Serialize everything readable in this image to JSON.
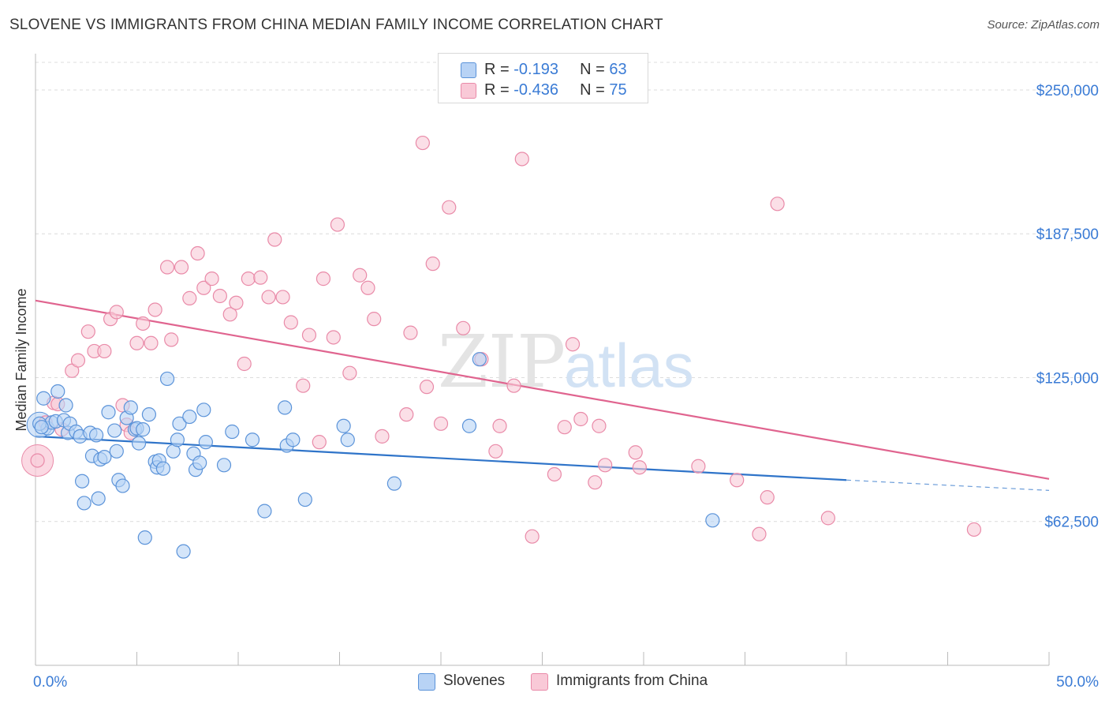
{
  "title": "SLOVENE VS IMMIGRANTS FROM CHINA MEDIAN FAMILY INCOME CORRELATION CHART",
  "source": "Source: ZipAtlas.com",
  "watermark": {
    "part1": "ZIP",
    "part2": "atlas"
  },
  "legend_top": [
    {
      "r_label": "R = ",
      "r_value": "-0.193",
      "n_label": "N = ",
      "n_value": "63"
    },
    {
      "r_label": "R = ",
      "r_value": "-0.436",
      "n_label": "N = ",
      "n_value": "75"
    }
  ],
  "legend_bottom": [
    "Slovenes",
    "Immigrants from China"
  ],
  "colors": {
    "blue_fill": "#b8d3f5",
    "blue_stroke": "#5b93d9",
    "blue_line": "#2f74c9",
    "pink_fill": "#f9c9d7",
    "pink_stroke": "#e98aa8",
    "pink_line": "#e0648f",
    "axis_text": "#3a7bd5",
    "grid": "#dcdcdc"
  },
  "chart_data": {
    "type": "scatter",
    "xlabel": "",
    "ylabel": "Median Family Income",
    "xlim": [
      0,
      50
    ],
    "ylim": [
      0,
      262000
    ],
    "x_tick_labels": [
      {
        "x": 0,
        "label": "0.0%"
      },
      {
        "x": 50,
        "label": "50.0%"
      }
    ],
    "y_ticks": [
      {
        "y": 62500,
        "label": "$62,500"
      },
      {
        "y": 125000,
        "label": "$125,000"
      },
      {
        "y": 187500,
        "label": "$187,500"
      },
      {
        "y": 250000,
        "label": "$250,000"
      }
    ],
    "series": [
      {
        "name": "Slovenes",
        "color": "blue",
        "trend": {
          "x0": 0,
          "y0": 99500,
          "x1": 40,
          "y1": 80500,
          "dashed_to": 50,
          "dashed_y": 76000
        },
        "points": [
          [
            0.4,
            116000
          ],
          [
            0.6,
            103000
          ],
          [
            0.8,
            105500
          ],
          [
            1.0,
            106000
          ],
          [
            1.1,
            119000
          ],
          [
            1.4,
            106500
          ],
          [
            1.5,
            113000
          ],
          [
            1.6,
            101000
          ],
          [
            1.7,
            105000
          ],
          [
            2.0,
            101500
          ],
          [
            2.2,
            99500
          ],
          [
            2.3,
            80000
          ],
          [
            2.4,
            70500
          ],
          [
            2.7,
            101000
          ],
          [
            2.8,
            91000
          ],
          [
            3.0,
            100000
          ],
          [
            3.1,
            72500
          ],
          [
            3.2,
            89500
          ],
          [
            3.4,
            90500
          ],
          [
            3.6,
            110000
          ],
          [
            3.9,
            102000
          ],
          [
            4.0,
            93000
          ],
          [
            4.1,
            80500
          ],
          [
            4.3,
            78000
          ],
          [
            4.5,
            107500
          ],
          [
            4.7,
            112000
          ],
          [
            4.9,
            102500
          ],
          [
            5.0,
            103000
          ],
          [
            5.1,
            96500
          ],
          [
            5.3,
            102500
          ],
          [
            5.4,
            55500
          ],
          [
            5.6,
            109000
          ],
          [
            5.9,
            88500
          ],
          [
            6.0,
            86000
          ],
          [
            6.1,
            89000
          ],
          [
            6.3,
            85500
          ],
          [
            6.5,
            124500
          ],
          [
            6.8,
            93000
          ],
          [
            7.0,
            98000
          ],
          [
            7.1,
            105000
          ],
          [
            7.3,
            49500
          ],
          [
            7.6,
            108000
          ],
          [
            7.8,
            92000
          ],
          [
            7.9,
            85000
          ],
          [
            8.1,
            88000
          ],
          [
            8.3,
            111000
          ],
          [
            8.4,
            97000
          ],
          [
            9.3,
            87000
          ],
          [
            9.7,
            101500
          ],
          [
            10.7,
            98000
          ],
          [
            11.3,
            67000
          ],
          [
            12.3,
            112000
          ],
          [
            12.4,
            95500
          ],
          [
            12.7,
            98000
          ],
          [
            13.3,
            72000
          ],
          [
            15.2,
            104000
          ],
          [
            15.4,
            98000
          ],
          [
            17.7,
            79000
          ],
          [
            21.4,
            104000
          ],
          [
            21.9,
            133000
          ],
          [
            33.4,
            63000
          ],
          [
            0.2,
            105000
          ],
          [
            0.3,
            103500
          ]
        ]
      },
      {
        "name": "Immigrants from China",
        "color": "pink",
        "trend": {
          "x0": 0,
          "y0": 158500,
          "x1": 50,
          "y1": 81000
        },
        "points": [
          [
            0.1,
            89000
          ],
          [
            0.5,
            105500
          ],
          [
            0.9,
            114000
          ],
          [
            1.1,
            113500
          ],
          [
            1.3,
            102500
          ],
          [
            1.8,
            128000
          ],
          [
            2.1,
            132500
          ],
          [
            2.6,
            145000
          ],
          [
            2.9,
            136500
          ],
          [
            3.4,
            136500
          ],
          [
            3.7,
            150500
          ],
          [
            4.0,
            153500
          ],
          [
            4.3,
            113000
          ],
          [
            4.5,
            104500
          ],
          [
            4.7,
            101000
          ],
          [
            5.0,
            140000
          ],
          [
            5.3,
            148500
          ],
          [
            5.7,
            140000
          ],
          [
            5.9,
            154500
          ],
          [
            6.5,
            173000
          ],
          [
            6.7,
            141500
          ],
          [
            7.2,
            173000
          ],
          [
            7.6,
            159500
          ],
          [
            8.0,
            179000
          ],
          [
            8.3,
            164000
          ],
          [
            8.7,
            168000
          ],
          [
            9.1,
            160500
          ],
          [
            9.6,
            152500
          ],
          [
            9.9,
            157500
          ],
          [
            10.3,
            131000
          ],
          [
            10.5,
            168000
          ],
          [
            11.1,
            168500
          ],
          [
            11.5,
            160000
          ],
          [
            11.8,
            185000
          ],
          [
            12.2,
            160000
          ],
          [
            12.6,
            149000
          ],
          [
            13.2,
            121500
          ],
          [
            13.5,
            143500
          ],
          [
            14.0,
            97000
          ],
          [
            14.2,
            168000
          ],
          [
            14.7,
            142500
          ],
          [
            14.9,
            191500
          ],
          [
            15.5,
            127000
          ],
          [
            16.0,
            169500
          ],
          [
            16.4,
            164000
          ],
          [
            16.7,
            150500
          ],
          [
            17.1,
            99500
          ],
          [
            18.3,
            109000
          ],
          [
            18.5,
            144500
          ],
          [
            19.1,
            227000
          ],
          [
            19.3,
            121000
          ],
          [
            19.6,
            174500
          ],
          [
            20.0,
            105000
          ],
          [
            20.4,
            199000
          ],
          [
            21.1,
            146500
          ],
          [
            22.0,
            133000
          ],
          [
            22.7,
            93000
          ],
          [
            22.9,
            104000
          ],
          [
            23.6,
            121500
          ],
          [
            24.0,
            220000
          ],
          [
            24.5,
            56000
          ],
          [
            25.6,
            83000
          ],
          [
            26.1,
            103500
          ],
          [
            26.5,
            139500
          ],
          [
            26.9,
            107000
          ],
          [
            27.6,
            79500
          ],
          [
            27.8,
            104000
          ],
          [
            28.1,
            87000
          ],
          [
            29.6,
            92500
          ],
          [
            29.8,
            86000
          ],
          [
            32.7,
            86500
          ],
          [
            34.6,
            80500
          ],
          [
            35.7,
            57000
          ],
          [
            36.1,
            73000
          ],
          [
            39.1,
            64000
          ]
        ]
      }
    ],
    "extra_pink_points": [
      [
        36.6,
        200500
      ],
      [
        46.3,
        59000
      ]
    ]
  }
}
